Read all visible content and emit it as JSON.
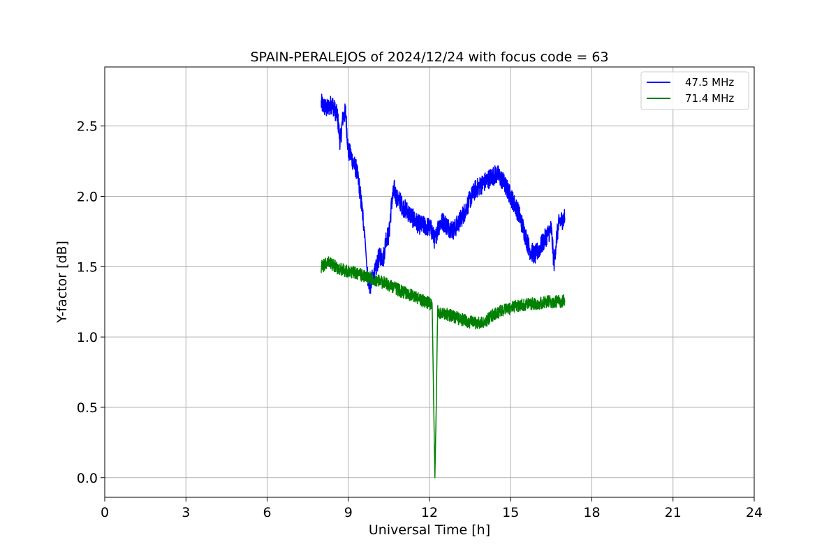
{
  "chart_data": {
    "type": "line",
    "title": "SPAIN-PERALEJOS of 2024/12/24 with focus code = 63",
    "xlabel": "Universal Time [h]",
    "ylabel": "Y-factor [dB]",
    "xlim": [
      0,
      24
    ],
    "ylim": [
      -0.14,
      2.92
    ],
    "xticks": [
      0,
      3,
      6,
      9,
      12,
      15,
      18,
      21,
      24
    ],
    "xtick_labels": [
      "0",
      "3",
      "6",
      "9",
      "12",
      "15",
      "18",
      "21",
      "24"
    ],
    "yticks": [
      0.0,
      0.5,
      1.0,
      1.5,
      2.0,
      2.5
    ],
    "ytick_labels": [
      "0.0",
      "0.5",
      "1.0",
      "1.5",
      "2.0",
      "2.5"
    ],
    "grid": true,
    "legend_position": "top-right",
    "series": [
      {
        "name": "47.5 MHz",
        "color": "#0000ff",
        "x": [
          8.0,
          8.2,
          8.4,
          8.6,
          8.7,
          8.8,
          8.9,
          9.0,
          9.1,
          9.2,
          9.3,
          9.4,
          9.5,
          9.6,
          9.7,
          9.8,
          9.9,
          10.0,
          10.1,
          10.2,
          10.3,
          10.4,
          10.5,
          10.6,
          10.7,
          10.8,
          10.9,
          11.0,
          11.2,
          11.4,
          11.6,
          11.8,
          12.0,
          12.1,
          12.2,
          12.3,
          12.4,
          12.5,
          12.7,
          12.9,
          13.1,
          13.3,
          13.5,
          13.7,
          13.9,
          14.1,
          14.3,
          14.5,
          14.7,
          14.9,
          15.1,
          15.3,
          15.5,
          15.7,
          15.9,
          16.1,
          16.3,
          16.5,
          16.6,
          16.7,
          16.8,
          16.9,
          17.0
        ],
        "y": [
          2.66,
          2.62,
          2.66,
          2.57,
          2.38,
          2.56,
          2.6,
          2.32,
          2.29,
          2.23,
          2.19,
          2.08,
          1.92,
          1.76,
          1.45,
          1.36,
          1.42,
          1.46,
          1.55,
          1.58,
          1.56,
          1.71,
          1.72,
          1.95,
          2.05,
          1.98,
          1.97,
          1.93,
          1.89,
          1.84,
          1.8,
          1.79,
          1.78,
          1.75,
          1.68,
          1.77,
          1.81,
          1.82,
          1.78,
          1.76,
          1.82,
          1.89,
          1.98,
          2.05,
          2.08,
          2.11,
          2.14,
          2.16,
          2.11,
          2.04,
          1.96,
          1.88,
          1.75,
          1.62,
          1.58,
          1.64,
          1.71,
          1.77,
          1.52,
          1.71,
          1.82,
          1.83,
          1.85
        ]
      },
      {
        "name": "71.4 MHz",
        "color": "#008000",
        "x": [
          8.0,
          8.3,
          8.6,
          8.9,
          9.2,
          9.5,
          9.8,
          10.1,
          10.4,
          10.7,
          11.0,
          11.3,
          11.6,
          11.9,
          12.1,
          12.15,
          12.2,
          12.25,
          12.3,
          12.5,
          12.8,
          13.1,
          13.4,
          13.7,
          14.0,
          14.3,
          14.6,
          14.9,
          15.2,
          15.5,
          15.8,
          16.1,
          16.4,
          16.7,
          17.0
        ],
        "y": [
          1.5,
          1.53,
          1.49,
          1.47,
          1.46,
          1.44,
          1.42,
          1.4,
          1.38,
          1.35,
          1.32,
          1.3,
          1.27,
          1.25,
          1.22,
          0.6,
          0.0,
          0.5,
          1.18,
          1.17,
          1.15,
          1.13,
          1.11,
          1.1,
          1.1,
          1.15,
          1.18,
          1.2,
          1.22,
          1.23,
          1.24,
          1.24,
          1.25,
          1.25,
          1.26
        ]
      }
    ]
  }
}
